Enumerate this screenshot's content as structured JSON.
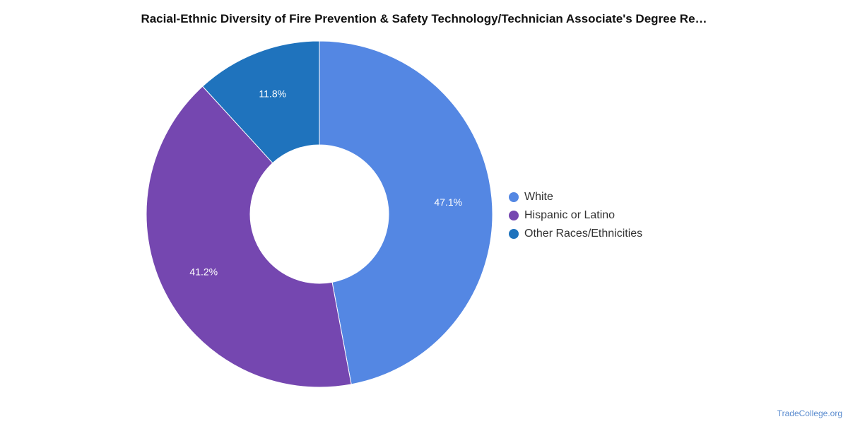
{
  "chart_data": {
    "type": "pie",
    "title": "Racial-Ethnic Diversity of Fire Prevention & Safety Technology/Technician Associate's Degree Re…",
    "donut": true,
    "legend_position": "right",
    "series": [
      {
        "name": "White",
        "value": 47.1,
        "label": "47.1%",
        "color": "#5487e3"
      },
      {
        "name": "Hispanic or Latino",
        "value": 41.2,
        "label": "41.2%",
        "color": "#7547b0"
      },
      {
        "name": "Other Races/Ethnicities",
        "value": 11.8,
        "label": "11.8%",
        "color": "#1f73bd"
      }
    ]
  },
  "watermark": "TradeCollege.org"
}
